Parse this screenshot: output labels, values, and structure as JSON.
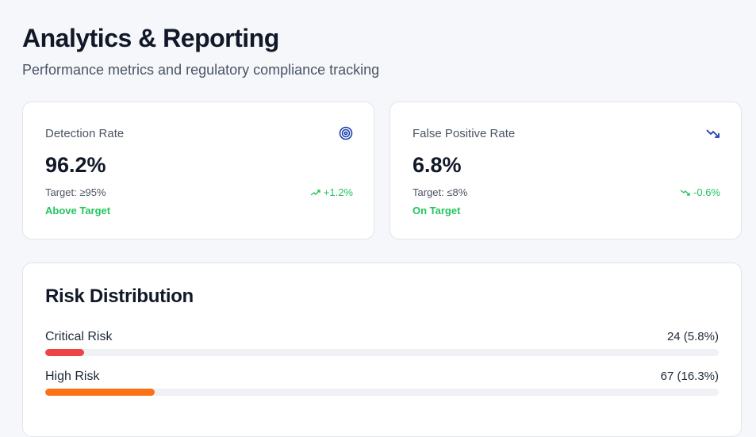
{
  "header": {
    "title": "Analytics & Reporting",
    "subtitle": "Performance metrics and regulatory compliance tracking"
  },
  "kpis": [
    {
      "label": "Detection Rate",
      "icon": "target-icon",
      "value": "96.2%",
      "target": "Target: ≥95%",
      "trend": "+1.2%",
      "trend_dir": "up",
      "status": "Above Target"
    },
    {
      "label": "False Positive Rate",
      "icon": "trending-down-icon",
      "value": "6.8%",
      "target": "Target: ≤8%",
      "trend": "-0.6%",
      "trend_dir": "down",
      "status": "On Target"
    }
  ],
  "risk": {
    "title": "Risk Distribution",
    "items": [
      {
        "label": "Critical Risk",
        "count": "24 (5.8%)",
        "percent": 5.8,
        "color": "#ef4444"
      },
      {
        "label": "High Risk",
        "count": "67 (16.3%)",
        "percent": 16.3,
        "color": "#f97316"
      }
    ]
  },
  "colors": {
    "accent": "#1e40af",
    "success": "#22c55e"
  }
}
